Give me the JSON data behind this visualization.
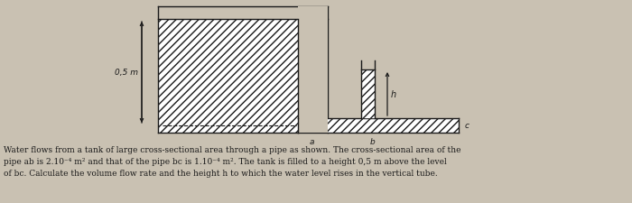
{
  "bg_color": "#c9c1b2",
  "line_color": "#1a1a1a",
  "text_color": "#1a1a1a",
  "text_lines": [
    "Water flows from a tank of large cross-sectional area through a pipe as shown. The cross-sectional area of the",
    "pipe ab is 2.10⁻⁴ m² and that of the pipe bc is 1.10⁻⁴ m². The tank is filled to a height 0,5 m above the level",
    "of bc. Calculate the volume flow rate and the height h to which the water level rises in the vertical tube."
  ],
  "label_05": "0,5 m",
  "label_h": "h",
  "label_a": "a",
  "label_b": "b",
  "label_c": "c",
  "fig_width": 7.0,
  "fig_height": 2.26,
  "dpi": 100
}
